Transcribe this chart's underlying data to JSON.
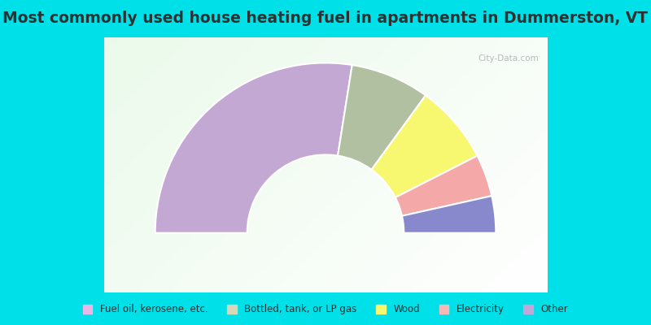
{
  "title": "Most commonly used house heating fuel in apartments in Dummerston, VT",
  "segments_ordered": [
    {
      "label": "Other",
      "value": 55,
      "color": "#c4a8d4"
    },
    {
      "label": "Bottled, tank, or LP gas",
      "value": 15,
      "color": "#b0c0a0"
    },
    {
      "label": "Wood",
      "value": 15,
      "color": "#f8f870"
    },
    {
      "label": "Electricity",
      "value": 8,
      "color": "#f4a8a8"
    },
    {
      "label": "Fuel oil, kerosene, etc.",
      "value": 7,
      "color": "#8888cc"
    }
  ],
  "legend_labels": [
    "Fuel oil, kerosene, etc.",
    "Bottled, tank, or LP gas",
    "Wood",
    "Electricity",
    "Other"
  ],
  "legend_colors": [
    "#e8b8e8",
    "#d8d8b8",
    "#f8f870",
    "#f8b8b8",
    "#c0a8d8"
  ],
  "cyan_color": "#00e0e8",
  "chart_bg_left": "#b8d8c0",
  "chart_bg_right": "#f0f0f0",
  "title_color": "#303030",
  "title_fontsize": 13.5,
  "inner_r": 0.46,
  "outer_r": 1.0,
  "title_bar_height": 0.115,
  "legend_bar_height": 0.1
}
